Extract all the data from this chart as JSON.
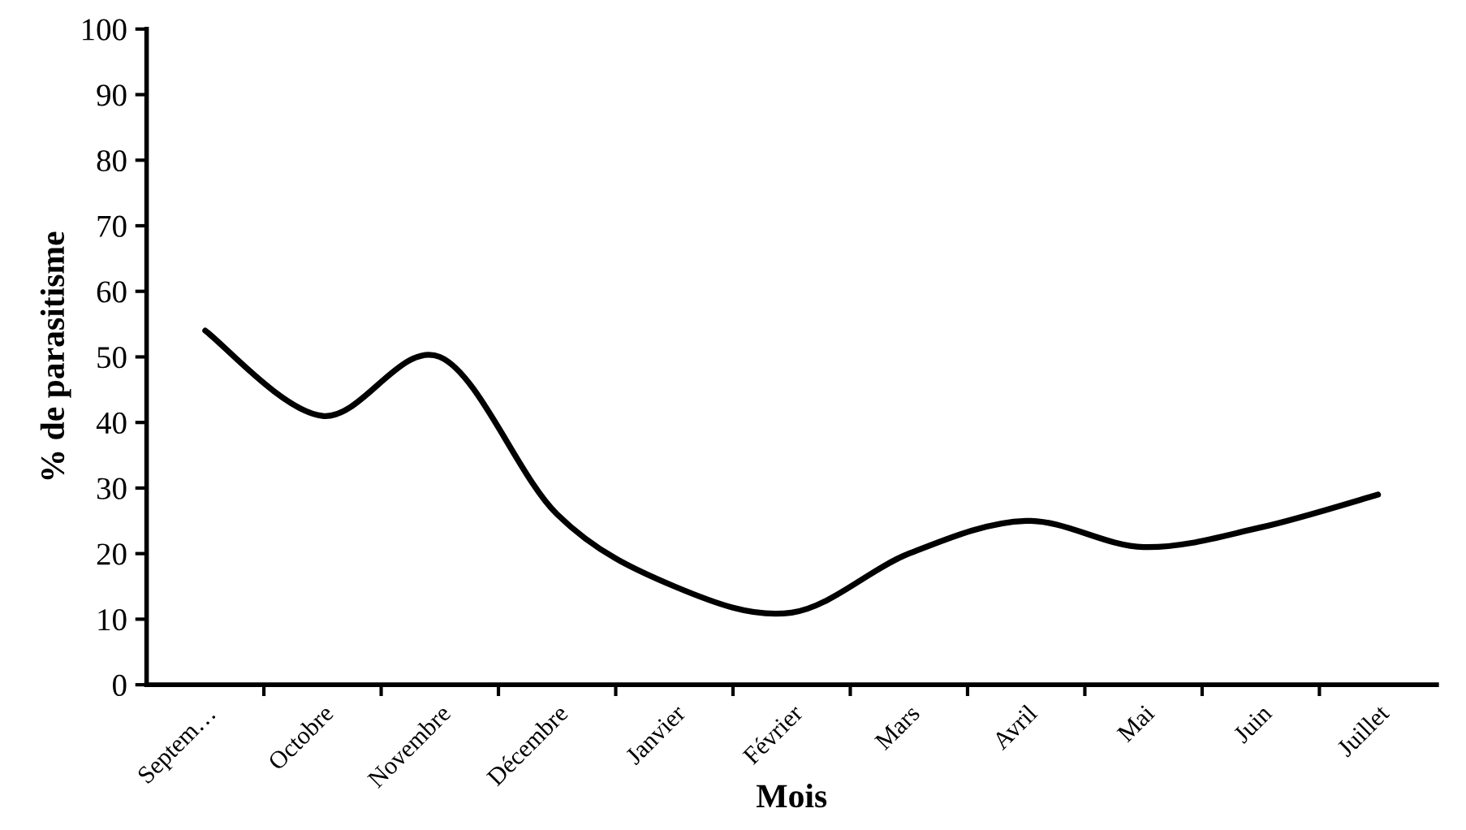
{
  "chart_data": {
    "type": "line",
    "xlabel": "Mois",
    "ylabel": "% de parasitisme",
    "categories": [
      "Septem…",
      "Octobre",
      "Novembre",
      "Décembre",
      "Janvier",
      "Février",
      "Mars",
      "Avril",
      "Mai",
      "Juin",
      "Juillet"
    ],
    "series": [
      {
        "color": "#000000",
        "values": [
          54,
          41,
          50,
          26,
          15,
          11,
          20,
          25,
          21,
          24,
          29
        ]
      }
    ],
    "ylim": [
      0,
      100
    ],
    "yticks": [
      0,
      10,
      20,
      30,
      40,
      50,
      60,
      70,
      80,
      90,
      100
    ],
    "grid": false,
    "marker": "none",
    "line_style": "solid"
  }
}
